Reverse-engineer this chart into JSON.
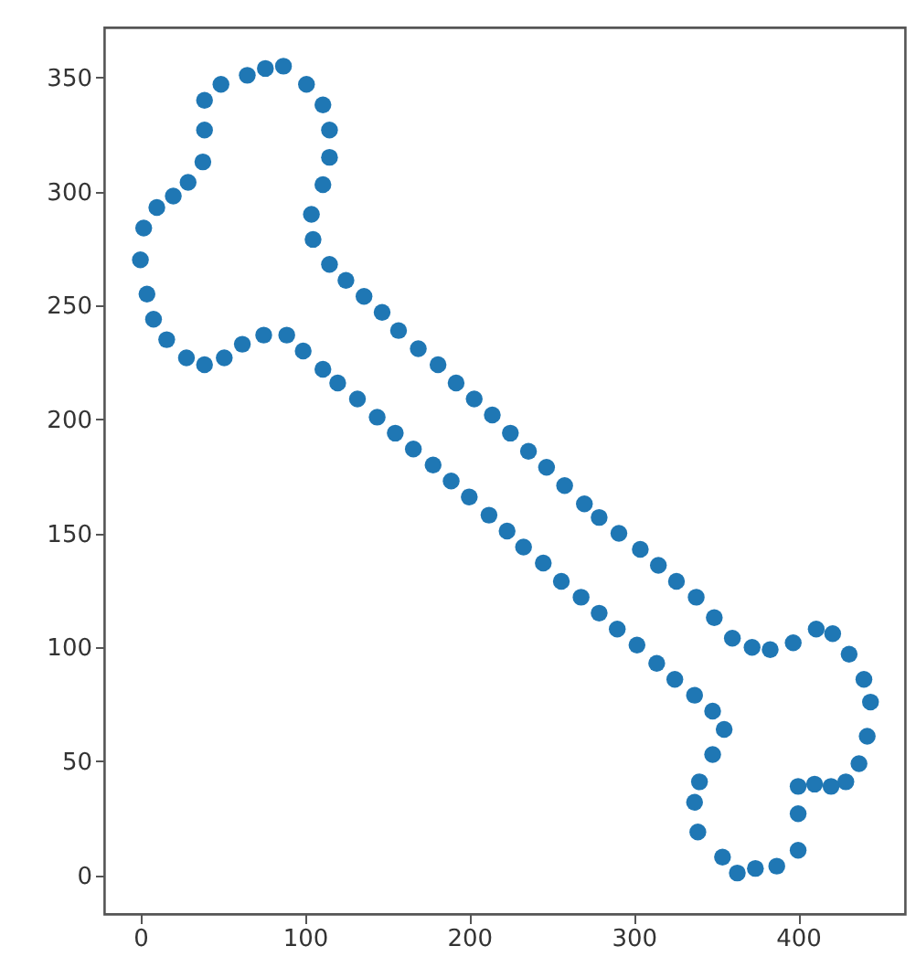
{
  "chart_data": {
    "type": "scatter",
    "marker": "circle",
    "grid": false,
    "legend": false,
    "xlim": [
      -22,
      465
    ],
    "ylim": [
      -17,
      372
    ],
    "xticks": [
      0,
      100,
      200,
      300,
      400
    ],
    "yticks": [
      0,
      50,
      100,
      150,
      200,
      250,
      300,
      350
    ],
    "series": [
      {
        "color": "#1f77b4",
        "x": [
          0,
          2,
          10,
          20,
          29,
          38,
          39,
          39,
          49,
          65,
          76,
          87,
          101,
          111,
          115,
          115,
          111,
          104,
          105,
          115,
          125,
          136,
          147,
          157,
          169,
          181,
          192,
          203,
          214,
          225,
          236,
          247,
          258,
          270,
          279,
          291,
          304,
          315,
          326,
          338,
          349,
          360,
          372,
          383,
          397,
          411,
          421,
          431,
          440,
          444,
          442,
          437,
          429,
          420,
          410,
          400,
          400,
          400,
          387,
          374,
          363,
          354,
          339,
          337,
          340,
          348,
          355,
          348,
          337,
          325,
          314,
          302,
          290,
          279,
          268,
          256,
          245,
          233,
          223,
          212,
          200,
          189,
          178,
          166,
          155,
          144,
          132,
          120,
          111,
          99,
          89,
          75,
          62,
          51,
          39,
          28,
          16,
          8,
          4
        ],
        "values": [
          270,
          284,
          293,
          298,
          304,
          313,
          327,
          340,
          347,
          351,
          354,
          355,
          347,
          338,
          327,
          315,
          303,
          290,
          279,
          268,
          261,
          254,
          247,
          239,
          231,
          224,
          216,
          209,
          202,
          194,
          186,
          179,
          171,
          163,
          157,
          150,
          143,
          136,
          129,
          122,
          113,
          104,
          100,
          99,
          102,
          108,
          106,
          97,
          86,
          76,
          61,
          49,
          41,
          39,
          40,
          39,
          27,
          11,
          4,
          3,
          1,
          8,
          19,
          32,
          41,
          53,
          64,
          72,
          79,
          86,
          93,
          101,
          108,
          115,
          122,
          129,
          137,
          144,
          151,
          158,
          166,
          173,
          180,
          187,
          194,
          201,
          209,
          216,
          222,
          230,
          237,
          237,
          233,
          227,
          224,
          227,
          235,
          244,
          255
        ]
      }
    ]
  }
}
